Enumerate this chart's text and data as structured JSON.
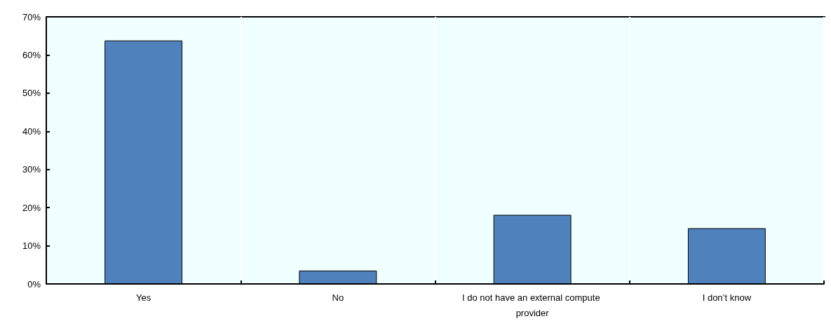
{
  "chart_data": {
    "type": "bar",
    "categories": [
      "Yes",
      "No",
      "I do not have an external compute provider",
      "I don’t know"
    ],
    "values": [
      63.8,
      3.5,
      18.1,
      14.6
    ],
    "color": "#4f81bd",
    "ylim": [
      0,
      70
    ],
    "yticks": [
      {
        "value": 0,
        "label": "0%"
      },
      {
        "value": 10,
        "label": "10%"
      },
      {
        "value": 20,
        "label": "20%"
      },
      {
        "value": 30,
        "label": "30%"
      },
      {
        "value": 40,
        "label": "40%"
      },
      {
        "value": 50,
        "label": "50%"
      },
      {
        "value": 60,
        "label": "60%"
      },
      {
        "value": 70,
        "label": "70%"
      }
    ],
    "grid": "x"
  }
}
